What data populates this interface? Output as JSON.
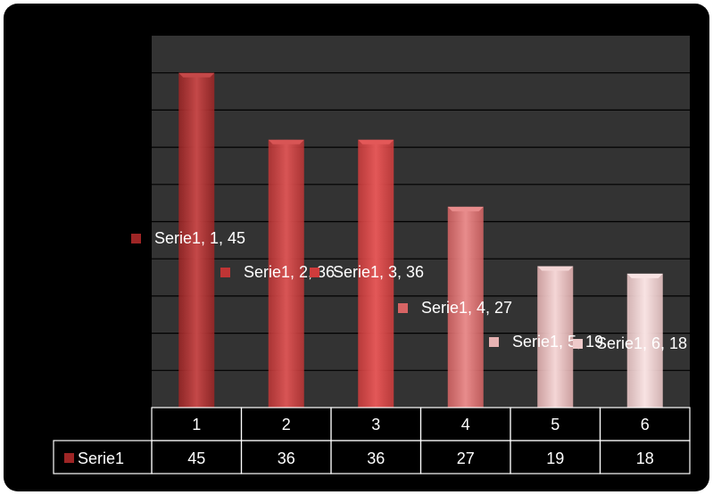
{
  "chart_data": {
    "type": "bar",
    "categories": [
      "1",
      "2",
      "3",
      "4",
      "5",
      "6"
    ],
    "series": [
      {
        "name": "Serie1",
        "values": [
          45,
          36,
          36,
          27,
          19,
          18
        ]
      }
    ],
    "data_labels": [
      "Serie1, 1, 45",
      "Serie1, 2, 36",
      "Serie1, 3, 36",
      "Serie1, 4, 27",
      "Serie1, 5, 19",
      "Serie1, 6, 18"
    ],
    "ylim": [
      0,
      50
    ],
    "grid": true,
    "data_table": true,
    "colors": {
      "plot_background": "#333333",
      "gridline": "#000000",
      "bars": [
        "#9e2525",
        "#bf3535",
        "#d03c3c",
        "#d76464",
        "#e7b3b3",
        "#efcaca"
      ],
      "bar_tops": [
        "#c44848",
        "#d85555",
        "#e35858",
        "#e88c8c",
        "#f4d6d6",
        "#f8e3e3"
      ]
    }
  }
}
